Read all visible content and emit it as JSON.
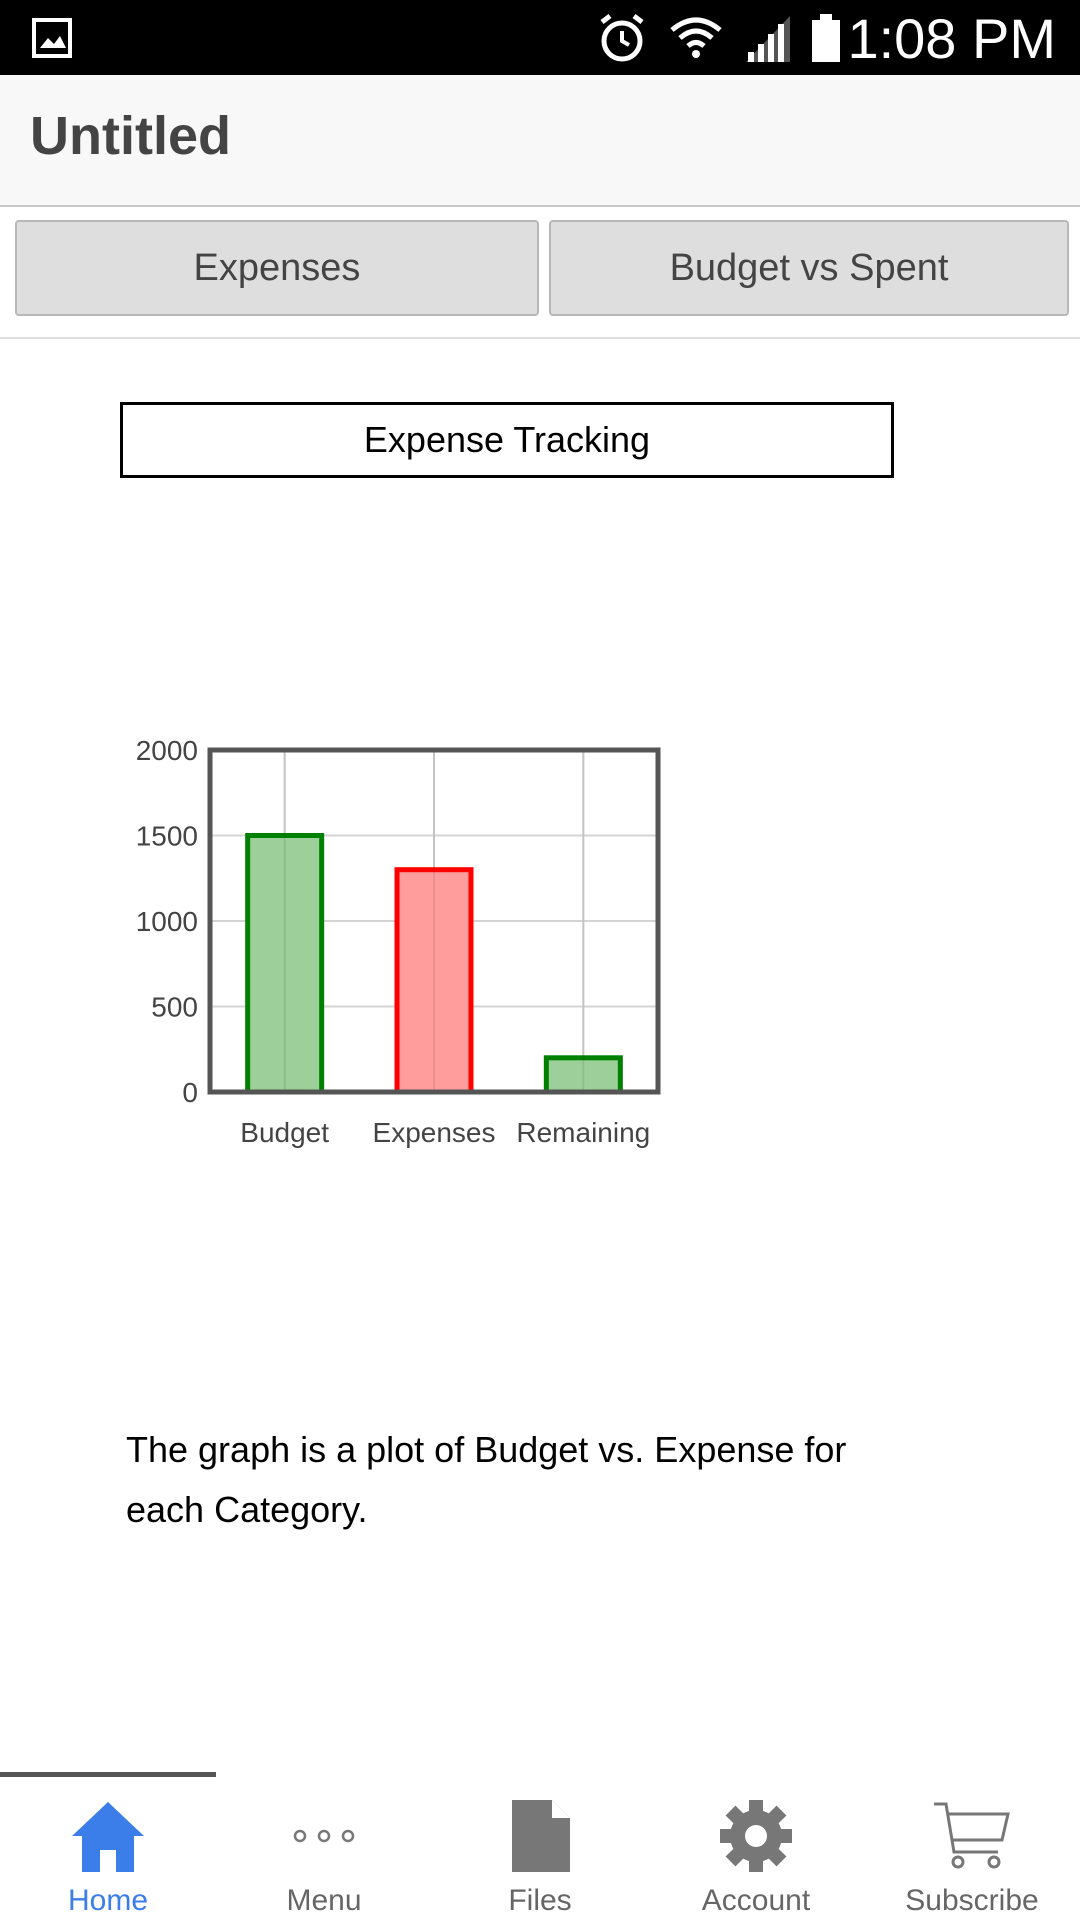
{
  "status_bar": {
    "time": "1:08 PM",
    "icons": [
      "gallery-icon",
      "alarm-icon",
      "wifi-icon",
      "signal-icon",
      "battery-icon"
    ]
  },
  "header": {
    "title": "Untitled"
  },
  "tabs": [
    {
      "label": "Expenses"
    },
    {
      "label": "Budget vs Spent"
    }
  ],
  "content": {
    "title": "Expense Tracking",
    "description": "The graph is a plot of Budget vs. Expense for each Category."
  },
  "chart_data": {
    "type": "bar",
    "categories": [
      "Budget",
      "Expenses",
      "Remaining"
    ],
    "values": [
      1500,
      1300,
      200
    ],
    "colors": [
      "#008000",
      "#ff0000",
      "#008000"
    ],
    "fill_colors": [
      "#9ccf9a",
      "#ff9c9c",
      "#9ccf9a"
    ],
    "y_ticks": [
      0,
      500,
      1000,
      1500,
      2000
    ],
    "ylim": [
      0,
      2000
    ],
    "grid": true,
    "title": "",
    "xlabel": "",
    "ylabel": ""
  },
  "bottom_nav": {
    "items": [
      {
        "label": "Home",
        "icon": "home-icon",
        "active": true
      },
      {
        "label": "Menu",
        "icon": "more-icon",
        "active": false
      },
      {
        "label": "Files",
        "icon": "file-icon",
        "active": false
      },
      {
        "label": "Account",
        "icon": "gear-icon",
        "active": false
      },
      {
        "label": "Subscribe",
        "icon": "cart-icon",
        "active": false
      }
    ],
    "active_color": "#3b7de9"
  }
}
